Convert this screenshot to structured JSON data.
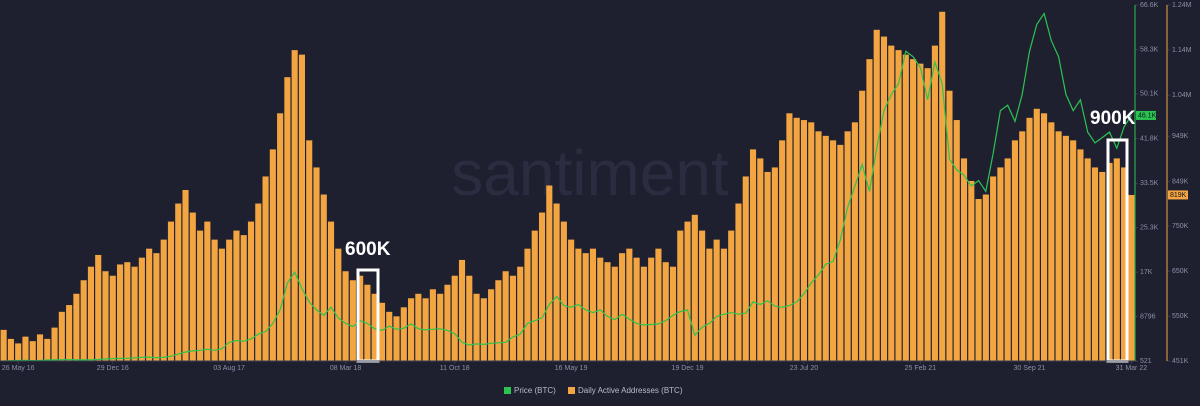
{
  "chart_data": {
    "type": "combo",
    "watermark": "santiment",
    "categories": [
      null,
      null,
      "26 May 16",
      null,
      null,
      null,
      null,
      null,
      null,
      null,
      null,
      null,
      null,
      null,
      null,
      "29 Dec 16",
      null,
      null,
      null,
      null,
      null,
      null,
      null,
      null,
      null,
      null,
      null,
      null,
      null,
      null,
      null,
      "03 Aug 17",
      null,
      null,
      null,
      null,
      null,
      null,
      null,
      null,
      null,
      null,
      null,
      null,
      null,
      null,
      null,
      "08 Mar 18",
      null,
      null,
      null,
      null,
      null,
      null,
      null,
      null,
      null,
      null,
      null,
      null,
      null,
      null,
      "11 Oct 18",
      null,
      null,
      null,
      null,
      null,
      null,
      null,
      null,
      null,
      null,
      null,
      null,
      null,
      null,
      null,
      "16 May 19",
      null,
      null,
      null,
      null,
      null,
      null,
      null,
      null,
      null,
      null,
      null,
      null,
      null,
      null,
      null,
      "19 Dec 19",
      null,
      null,
      null,
      null,
      null,
      null,
      null,
      null,
      null,
      null,
      null,
      null,
      null,
      null,
      null,
      "23 Jul 20",
      null,
      null,
      null,
      null,
      null,
      null,
      null,
      null,
      null,
      null,
      null,
      null,
      null,
      null,
      null,
      "25 Feb 21",
      null,
      null,
      null,
      null,
      null,
      null,
      null,
      null,
      null,
      null,
      null,
      null,
      null,
      null,
      "30 Sep 21",
      null,
      null,
      null,
      null,
      null,
      null,
      null,
      null,
      null,
      null,
      null,
      null,
      null,
      "31 Mar 22"
    ],
    "series": [
      {
        "name": "Price (BTC)",
        "type": "line",
        "axis": "y",
        "color": "#2bc450",
        "last_label": "46.1K",
        "values": [
          540,
          580,
          620,
          650,
          600,
          610,
          700,
          730,
          760,
          780,
          740,
          720,
          750,
          800,
          900,
          960,
          1000,
          1020,
          1100,
          1200,
          1250,
          1150,
          1200,
          1400,
          1800,
          2200,
          2400,
          2500,
          2700,
          2500,
          2800,
          4000,
          4300,
          4200,
          4600,
          5500,
          6000,
          7500,
          10000,
          15000,
          17000,
          14000,
          11500,
          10000,
          9000,
          10500,
          8500,
          7500,
          6900,
          8000,
          7500,
          6500,
          6200,
          7000,
          6400,
          6600,
          7400,
          6500,
          6300,
          6400,
          6500,
          6200,
          5600,
          4000,
          3500,
          3700,
          3600,
          3800,
          3900,
          4000,
          5000,
          5500,
          7500,
          8000,
          8500,
          11000,
          12500,
          10800,
          10500,
          11000,
          10000,
          9500,
          10000,
          8800,
          8200,
          9200,
          8300,
          7500,
          7200,
          7300,
          7400,
          8000,
          9000,
          9700,
          10000,
          5300,
          6800,
          7500,
          8800,
          9200,
          9500,
          9200,
          9400,
          11500,
          11000,
          11700,
          10700,
          10500,
          10800,
          11500,
          13000,
          15000,
          16500,
          18500,
          19000,
          23000,
          29000,
          33000,
          37000,
          32000,
          40000,
          47000,
          50000,
          52000,
          58000,
          57000,
          55000,
          49000,
          56000,
          52000,
          38000,
          36000,
          35000,
          33000,
          34000,
          32000,
          39000,
          47000,
          48000,
          45000,
          50000,
          58000,
          63000,
          65000,
          60000,
          57000,
          50000,
          47000,
          49000,
          43000,
          41000,
          42000,
          43000,
          40000,
          44000,
          46100
        ]
      },
      {
        "name": "Daily Active Addresses (BTC)",
        "type": "bar",
        "axis": "y2",
        "color": "#f2a541",
        "last_label": "819K",
        "values": [
          520000,
          500000,
          490000,
          505000,
          495000,
          510000,
          500000,
          525000,
          560000,
          575000,
          600000,
          630000,
          660000,
          686000,
          650000,
          640000,
          665000,
          670000,
          660000,
          680000,
          700000,
          690000,
          720000,
          760000,
          800000,
          830000,
          780000,
          740000,
          760000,
          720000,
          700000,
          720000,
          740000,
          730000,
          760000,
          800000,
          860000,
          920000,
          1000000,
          1080000,
          1140000,
          1130000,
          940000,
          880000,
          820000,
          760000,
          700000,
          650000,
          630000,
          640000,
          620000,
          600000,
          580000,
          560000,
          550000,
          570000,
          590000,
          600000,
          590000,
          610000,
          600000,
          620000,
          640000,
          675000,
          640000,
          600000,
          590000,
          610000,
          630000,
          650000,
          640000,
          660000,
          700000,
          740000,
          780000,
          840000,
          800000,
          760000,
          720000,
          700000,
          690000,
          700000,
          680000,
          670000,
          660000,
          690000,
          700000,
          680000,
          660000,
          680000,
          700000,
          670000,
          660000,
          740000,
          760000,
          775000,
          740000,
          700000,
          720000,
          700000,
          740000,
          800000,
          860000,
          920000,
          900000,
          870000,
          880000,
          940000,
          1000000,
          990000,
          985000,
          980000,
          960000,
          950000,
          940000,
          930000,
          960000,
          980000,
          1050000,
          1120000,
          1185000,
          1170000,
          1150000,
          1140000,
          1130000,
          1120000,
          1110000,
          1100000,
          1150000,
          1225000,
          1050000,
          985000,
          900000,
          850000,
          810000,
          820000,
          860000,
          880000,
          900000,
          940000,
          960000,
          990000,
          1010000,
          1000000,
          980000,
          960000,
          950000,
          940000,
          920000,
          900000,
          880000,
          870000,
          890000,
          900000,
          880000,
          819000
        ]
      }
    ],
    "ylim": [
      521,
      66600
    ],
    "yticks": [
      521,
      8796,
      {
        "value": 17000,
        "label": "17K"
      },
      {
        "value": 25300,
        "label": "25.3K"
      },
      {
        "value": 33500,
        "label": "33.5K"
      },
      {
        "value": 41800,
        "label": "41.8K"
      },
      {
        "value": 50100,
        "label": "50.1K"
      },
      {
        "value": 58300,
        "label": "58.3K"
      },
      {
        "value": 66600,
        "label": "66.6K"
      }
    ],
    "y2lim": [
      451000,
      1240000
    ],
    "y2ticks": [
      {
        "value": 451000,
        "label": "451K"
      },
      {
        "value": 550000,
        "label": "550K"
      },
      {
        "value": 650000,
        "label": "650K"
      },
      {
        "value": 750000,
        "label": "750K"
      },
      {
        "value": 849000,
        "label": "849K"
      },
      {
        "value": 949000,
        "label": "949K"
      },
      {
        "value": 1040000,
        "label": "1.04M"
      },
      {
        "value": 1140000,
        "label": "1.14M"
      },
      {
        "value": 1240000,
        "label": "1.24M"
      }
    ],
    "annotations": [
      "600K",
      "900K"
    ]
  }
}
